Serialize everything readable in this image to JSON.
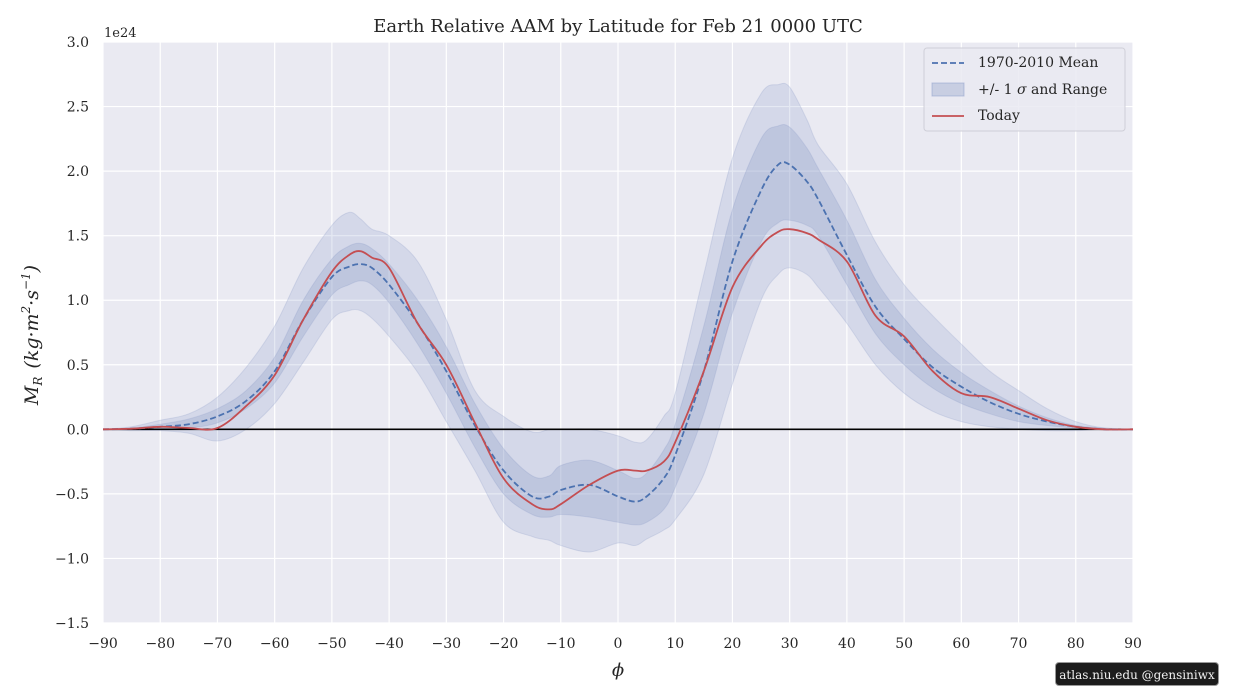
{
  "chart_data": {
    "type": "line",
    "title": "Earth Relative AAM by Latitude for Feb 21 0000 UTC",
    "xlabel": "ϕ",
    "ylabel": "M_R (kg·m²·s⁻¹)",
    "ylabel_parts": {
      "sym": "M",
      "sub": "R",
      "pre": "(kg·m",
      "sq": "2",
      "mid": "·s",
      "inv": "−1",
      "post": ")"
    },
    "y_multiplier": "1e24",
    "xlim": [
      -90,
      90
    ],
    "ylim": [
      -1.5,
      3.0
    ],
    "xticks": [
      -90,
      -80,
      -70,
      -60,
      -50,
      -40,
      -30,
      -20,
      -10,
      0,
      10,
      20,
      30,
      40,
      50,
      60,
      70,
      80,
      90
    ],
    "yticks": [
      -1.5,
      -1.0,
      -0.5,
      0.0,
      0.5,
      1.0,
      1.5,
      2.0,
      2.5,
      3.0
    ],
    "xtick_labels": [
      "−90",
      "−80",
      "−70",
      "−60",
      "−50",
      "−40",
      "−30",
      "−20",
      "−10",
      "0",
      "10",
      "20",
      "30",
      "40",
      "50",
      "60",
      "70",
      "80",
      "90"
    ],
    "ytick_labels": [
      "−1.5",
      "−1.0",
      "−0.5",
      "0.0",
      "0.5",
      "1.0",
      "1.5",
      "2.0",
      "2.5",
      "3.0"
    ],
    "grid": true,
    "legend_position": "top-right",
    "legend": [
      {
        "label": "1970-2010 Mean",
        "kind": "dashed"
      },
      {
        "label_pre": "+/- 1 ",
        "label_sym": "σ",
        "label_post": " and Range",
        "kind": "band"
      },
      {
        "label": "Today",
        "kind": "solid"
      }
    ],
    "x": [
      -90,
      -85,
      -80,
      -75,
      -70,
      -65,
      -60,
      -55,
      -50,
      -47,
      -45,
      -43,
      -40,
      -35,
      -30,
      -25,
      -20,
      -15,
      -12,
      -10,
      -5,
      0,
      3,
      5,
      8,
      10,
      15,
      20,
      25,
      28,
      30,
      33,
      35,
      40,
      45,
      50,
      55,
      60,
      65,
      70,
      75,
      80,
      85,
      90
    ],
    "series": [
      {
        "name": "1970-2010 Mean",
        "role": "mean",
        "values": [
          0.0,
          0.005,
          0.02,
          0.04,
          0.1,
          0.22,
          0.45,
          0.85,
          1.18,
          1.26,
          1.28,
          1.25,
          1.12,
          0.82,
          0.45,
          0.03,
          -0.32,
          -0.52,
          -0.52,
          -0.47,
          -0.43,
          -0.52,
          -0.56,
          -0.52,
          -0.38,
          -0.2,
          0.45,
          1.3,
          1.85,
          2.05,
          2.05,
          1.92,
          1.78,
          1.35,
          0.95,
          0.7,
          0.48,
          0.33,
          0.21,
          0.12,
          0.06,
          0.02,
          0.0,
          0.0
        ]
      },
      {
        "name": "Today",
        "role": "today",
        "values": [
          0.0,
          0.005,
          0.02,
          0.01,
          0.01,
          0.18,
          0.42,
          0.85,
          1.22,
          1.35,
          1.38,
          1.33,
          1.25,
          0.82,
          0.5,
          0.05,
          -0.38,
          -0.58,
          -0.62,
          -0.58,
          -0.43,
          -0.32,
          -0.32,
          -0.32,
          -0.25,
          -0.1,
          0.45,
          1.1,
          1.42,
          1.53,
          1.55,
          1.52,
          1.47,
          1.3,
          0.88,
          0.72,
          0.45,
          0.28,
          0.25,
          0.16,
          0.07,
          0.02,
          0.0,
          0.0
        ]
      },
      {
        "name": "-1 sigma",
        "role": "sigma_low",
        "values": [
          0.0,
          0.0,
          0.0,
          0.01,
          0.05,
          0.16,
          0.36,
          0.72,
          1.04,
          1.12,
          1.15,
          1.12,
          0.98,
          0.66,
          0.28,
          -0.14,
          -0.5,
          -0.66,
          -0.68,
          -0.66,
          -0.68,
          -0.72,
          -0.74,
          -0.72,
          -0.62,
          -0.45,
          0.12,
          0.9,
          1.45,
          1.6,
          1.62,
          1.58,
          1.5,
          1.12,
          0.74,
          0.5,
          0.32,
          0.2,
          0.12,
          0.06,
          0.03,
          0.01,
          0.0,
          0.0
        ]
      },
      {
        "name": "+1 sigma",
        "role": "sigma_high",
        "values": [
          0.0,
          0.01,
          0.04,
          0.08,
          0.16,
          0.3,
          0.56,
          1.0,
          1.32,
          1.42,
          1.44,
          1.4,
          1.28,
          1.0,
          0.64,
          0.2,
          -0.15,
          -0.36,
          -0.36,
          -0.28,
          -0.24,
          -0.32,
          -0.38,
          -0.34,
          -0.16,
          0.04,
          0.8,
          1.7,
          2.25,
          2.35,
          2.34,
          2.18,
          2.02,
          1.62,
          1.16,
          0.86,
          0.62,
          0.44,
          0.3,
          0.18,
          0.09,
          0.03,
          0.01,
          0.0
        ]
      },
      {
        "name": "Range min",
        "role": "range_min",
        "values": [
          0.0,
          -0.01,
          -0.01,
          -0.03,
          -0.09,
          0.0,
          0.2,
          0.52,
          0.85,
          0.92,
          0.92,
          0.86,
          0.72,
          0.44,
          0.06,
          -0.32,
          -0.72,
          -0.83,
          -0.86,
          -0.9,
          -0.95,
          -0.88,
          -0.9,
          -0.85,
          -0.78,
          -0.7,
          -0.35,
          0.35,
          1.0,
          1.2,
          1.25,
          1.2,
          1.1,
          0.82,
          0.5,
          0.28,
          0.14,
          0.06,
          0.02,
          0.0,
          -0.01,
          -0.01,
          0.0,
          0.0
        ]
      },
      {
        "name": "Range max",
        "role": "range_max",
        "values": [
          0.0,
          0.02,
          0.07,
          0.12,
          0.25,
          0.48,
          0.8,
          1.25,
          1.58,
          1.68,
          1.63,
          1.55,
          1.5,
          1.3,
          0.85,
          0.3,
          0.1,
          -0.02,
          0.0,
          0.0,
          0.0,
          -0.05,
          -0.1,
          -0.08,
          0.1,
          0.28,
          1.2,
          2.1,
          2.6,
          2.67,
          2.65,
          2.4,
          2.2,
          1.9,
          1.45,
          1.12,
          0.88,
          0.66,
          0.45,
          0.3,
          0.16,
          0.06,
          0.01,
          0.0
        ]
      }
    ]
  },
  "colors": {
    "plot_bg": "#eaeaf2",
    "grid": "#ffffff",
    "band": "#8a9bc7",
    "mean_line": "#4c72b0",
    "today_line": "#c44e52",
    "zero_line": "#000000",
    "text": "#262626"
  },
  "credit": "atlas.niu.edu  @gensiniwx"
}
